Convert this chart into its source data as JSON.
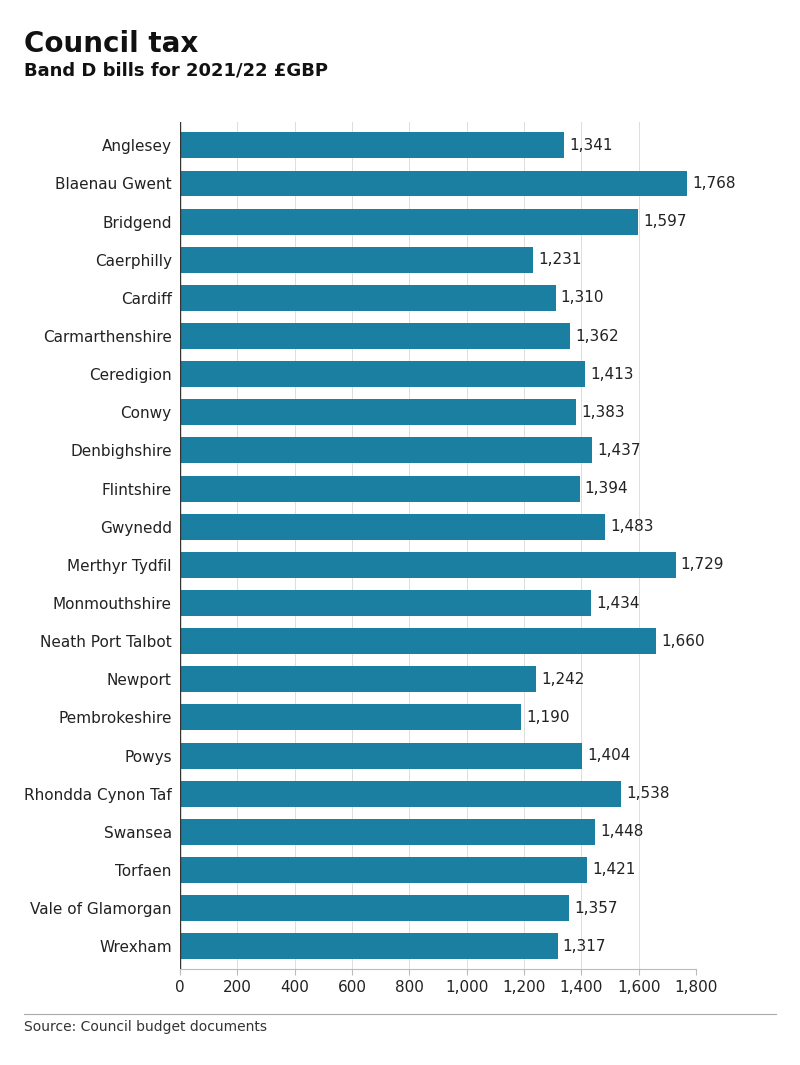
{
  "title": "Council tax",
  "subtitle": "Band D bills for 2021/22 £GBP",
  "source": "Source: Council budget documents",
  "bar_color": "#1a7fa0",
  "background_color": "#ffffff",
  "categories": [
    "Anglesey",
    "Blaenau Gwent",
    "Bridgend",
    "Caerphilly",
    "Cardiff",
    "Carmarthenshire",
    "Ceredigion",
    "Conwy",
    "Denbighshire",
    "Flintshire",
    "Gwynedd",
    "Merthyr Tydfil",
    "Monmouthshire",
    "Neath Port Talbot",
    "Newport",
    "Pembrokeshire",
    "Powys",
    "Rhondda Cynon Taf",
    "Swansea",
    "Torfaen",
    "Vale of Glamorgan",
    "Wrexham"
  ],
  "values": [
    1341,
    1768,
    1597,
    1231,
    1310,
    1362,
    1413,
    1383,
    1437,
    1394,
    1483,
    1729,
    1434,
    1660,
    1242,
    1190,
    1404,
    1538,
    1448,
    1421,
    1357,
    1317
  ],
  "xlim": [
    0,
    1800
  ],
  "xticks": [
    0,
    200,
    400,
    600,
    800,
    1000,
    1200,
    1400,
    1600,
    1800
  ],
  "title_fontsize": 20,
  "subtitle_fontsize": 13,
  "label_fontsize": 11,
  "tick_fontsize": 11,
  "value_fontsize": 11,
  "source_fontsize": 10
}
